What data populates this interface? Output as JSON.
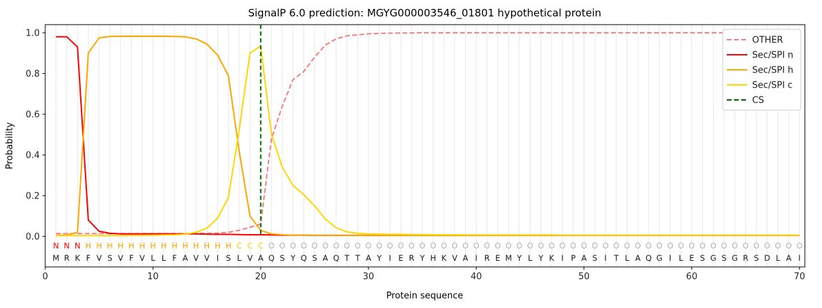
{
  "chart_data": {
    "type": "line",
    "title": "SignalP 6.0 prediction: MGYG000003546_01801 hypothetical protein",
    "xlabel": "Protein sequence",
    "ylabel": "Probability",
    "xlim": [
      0,
      70.5
    ],
    "ylim": [
      -0.15,
      1.04
    ],
    "x_ticks": [
      0,
      10,
      20,
      30,
      40,
      50,
      60,
      70
    ],
    "y_ticks": [
      0.0,
      0.2,
      0.4,
      0.6,
      0.8,
      1.0
    ],
    "grid": "vertical-line-per-residue",
    "legend_position": "upper right",
    "sequence": "MRKFVSVFVLLFAVVISLVAQSYQSAQTTAYIERYHKVAIREMYLYKIPASITLAQGILESGSGRSDLAI",
    "region_labels": "NNNHHHHHHHHHHHHHHCCCOOOOOOOOOOOOOOOOOOOOOOOOOOOOOOOOOOOOOOOOOOOOOOOOOO",
    "cs_marker": {
      "name": "CS",
      "position": 20,
      "color": "#006400",
      "style": "dashed"
    },
    "series": [
      {
        "name": "OTHER",
        "color": "#f08080",
        "style": "dashed",
        "values": [
          0.014,
          0.014,
          0.014,
          0.014,
          0.014,
          0.014,
          0.014,
          0.014,
          0.014,
          0.014,
          0.014,
          0.014,
          0.014,
          0.015,
          0.015,
          0.016,
          0.02,
          0.03,
          0.045,
          0.06,
          0.48,
          0.64,
          0.77,
          0.81,
          0.88,
          0.94,
          0.97,
          0.985,
          0.99,
          0.995,
          0.997,
          0.998,
          0.999,
          0.999,
          1.0,
          1.0,
          1.0,
          1.0,
          1.0,
          1.0,
          1.0,
          1.0,
          1.0,
          1.0,
          1.0,
          1.0,
          1.0,
          1.0,
          1.0,
          1.0,
          1.0,
          1.0,
          1.0,
          1.0,
          1.0,
          1.0,
          1.0,
          1.0,
          1.0,
          1.0,
          1.0,
          1.0,
          1.0,
          1.0,
          1.0,
          1.0,
          1.0,
          1.0,
          1.0,
          1.0
        ]
      },
      {
        "name": "Sec/SPI n",
        "color": "#ff0000",
        "style": "solid",
        "values": [
          0.98,
          0.98,
          0.93,
          0.08,
          0.025,
          0.015,
          0.012,
          0.012,
          0.012,
          0.012,
          0.012,
          0.012,
          0.012,
          0.012,
          0.011,
          0.01,
          0.01,
          0.009,
          0.008,
          0.008,
          0.007,
          0.006,
          0.006,
          0.006,
          0.005,
          0.005,
          0.005,
          0.005,
          0.005,
          0.005,
          0.005,
          0.005,
          0.005,
          0.005,
          0.005,
          0.005,
          0.005,
          0.005,
          0.005,
          0.005,
          0.005,
          0.005,
          0.005,
          0.005,
          0.005,
          0.005,
          0.005,
          0.005,
          0.005,
          0.005,
          0.005,
          0.005,
          0.005,
          0.005,
          0.005,
          0.005,
          0.005,
          0.005,
          0.005,
          0.005,
          0.005,
          0.005,
          0.005,
          0.005,
          0.005,
          0.005,
          0.005,
          0.005,
          0.005,
          0.005
        ]
      },
      {
        "name": "Sec/SPI h",
        "color": "#ffa500",
        "style": "solid",
        "values": [
          0.005,
          0.006,
          0.02,
          0.9,
          0.975,
          0.982,
          0.983,
          0.983,
          0.983,
          0.983,
          0.983,
          0.982,
          0.98,
          0.97,
          0.945,
          0.89,
          0.79,
          0.42,
          0.1,
          0.03,
          0.012,
          0.008,
          0.006,
          0.006,
          0.005,
          0.005,
          0.005,
          0.005,
          0.005,
          0.005,
          0.005,
          0.005,
          0.005,
          0.005,
          0.005,
          0.005,
          0.005,
          0.005,
          0.005,
          0.005,
          0.005,
          0.005,
          0.005,
          0.005,
          0.005,
          0.005,
          0.005,
          0.005,
          0.005,
          0.005,
          0.005,
          0.005,
          0.005,
          0.005,
          0.005,
          0.005,
          0.005,
          0.005,
          0.005,
          0.005,
          0.005,
          0.005,
          0.005,
          0.005,
          0.005,
          0.005,
          0.005,
          0.005,
          0.005,
          0.005
        ]
      },
      {
        "name": "Sec/SPI c",
        "color": "#ffd700",
        "style": "solid",
        "values": [
          0.004,
          0.004,
          0.004,
          0.004,
          0.004,
          0.004,
          0.004,
          0.005,
          0.005,
          0.006,
          0.007,
          0.008,
          0.011,
          0.02,
          0.04,
          0.09,
          0.19,
          0.52,
          0.9,
          0.935,
          0.5,
          0.34,
          0.25,
          0.205,
          0.15,
          0.085,
          0.042,
          0.022,
          0.015,
          0.012,
          0.011,
          0.01,
          0.01,
          0.009,
          0.009,
          0.008,
          0.008,
          0.008,
          0.007,
          0.007,
          0.007,
          0.007,
          0.007,
          0.007,
          0.007,
          0.007,
          0.007,
          0.006,
          0.006,
          0.006,
          0.006,
          0.006,
          0.006,
          0.006,
          0.006,
          0.006,
          0.006,
          0.006,
          0.006,
          0.006,
          0.006,
          0.006,
          0.006,
          0.006,
          0.006,
          0.006,
          0.006,
          0.006,
          0.006,
          0.006
        ]
      }
    ],
    "colors": {
      "grid": "#e8e8e8",
      "frame": "#000000",
      "background": "#ffffff",
      "sequence_text": "#1a1a1a",
      "regions": {
        "N": "#ff0000",
        "H": "#ffa500",
        "C": "#ffd700",
        "O": "#b3b3b3"
      }
    }
  }
}
